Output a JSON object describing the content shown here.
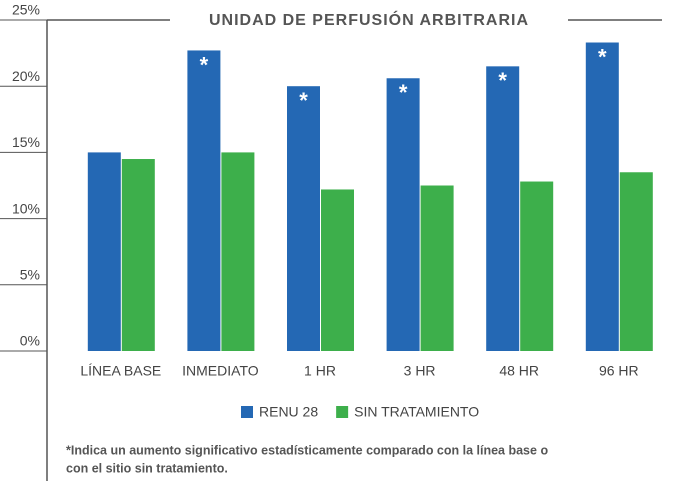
{
  "chart_data": {
    "type": "bar",
    "title": "UNIDAD DE PERFUSIÓN ARBITRARIA",
    "categories": [
      "LÍNEA BASE",
      "INMEDIATO",
      "1 HR",
      "3 HR",
      "48 HR",
      "96 HR"
    ],
    "series": [
      {
        "name": "RENU 28",
        "color": "#2468b4",
        "values": [
          15,
          22.7,
          20,
          20.6,
          21.5,
          23.3
        ],
        "value_labels": [
          null,
          "*",
          "*",
          "*",
          "*",
          "*"
        ]
      },
      {
        "name": "SIN TRATAMIENTO",
        "color": "#3daf4b",
        "values": [
          14.5,
          15,
          12.2,
          12.5,
          12.8,
          13.5
        ]
      }
    ],
    "ylim": [
      0,
      25
    ],
    "yticks": [
      {
        "value": 0,
        "label": "0%"
      },
      {
        "value": 5,
        "label": "5%"
      },
      {
        "value": 10,
        "label": "10%"
      },
      {
        "value": 15,
        "label": "15%"
      },
      {
        "value": 20,
        "label": "20%"
      },
      {
        "value": 25,
        "label": "25%"
      }
    ],
    "legend": "bottom",
    "footnote": [
      "*Indica un aumento significativo estadísticamente comparado con la línea base o",
      "con el sitio sin tratamiento."
    ]
  }
}
